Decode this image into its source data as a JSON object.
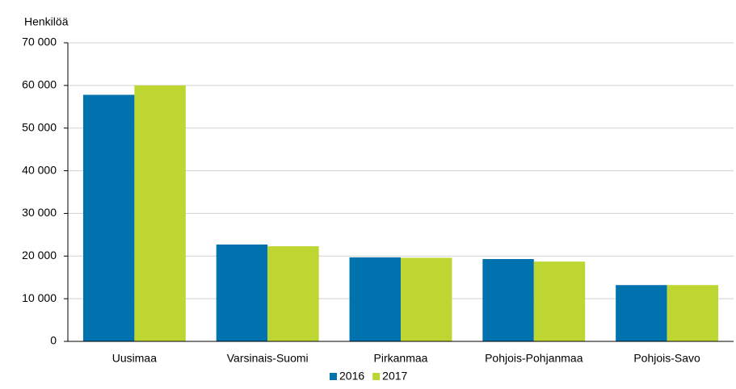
{
  "chart_data": {
    "type": "bar",
    "y_label": "Henkilöä",
    "categories": [
      "Uusimaa",
      "Varsinais-Suomi",
      "Pirkanmaa",
      "Pohjois-Pohjanmaa",
      "Pohjois-Savo"
    ],
    "series": [
      {
        "name": "2016",
        "color": "#0072ae",
        "values": [
          57800,
          22700,
          19700,
          19300,
          13200
        ]
      },
      {
        "name": "2017",
        "color": "#bed631",
        "values": [
          60000,
          22300,
          19600,
          18700,
          13200
        ]
      }
    ],
    "ylim": [
      0,
      70000
    ],
    "yticks": [
      0,
      {
        "value": 10000,
        "label": "10 000"
      },
      {
        "value": 20000,
        "label": "20 000"
      },
      {
        "value": 30000,
        "label": "30 000"
      },
      {
        "value": 40000,
        "label": "40 000"
      },
      {
        "value": 50000,
        "label": "50 000"
      },
      {
        "value": 60000,
        "label": "60 000"
      },
      {
        "value": 70000,
        "label": "70 000"
      }
    ],
    "grid": true
  }
}
